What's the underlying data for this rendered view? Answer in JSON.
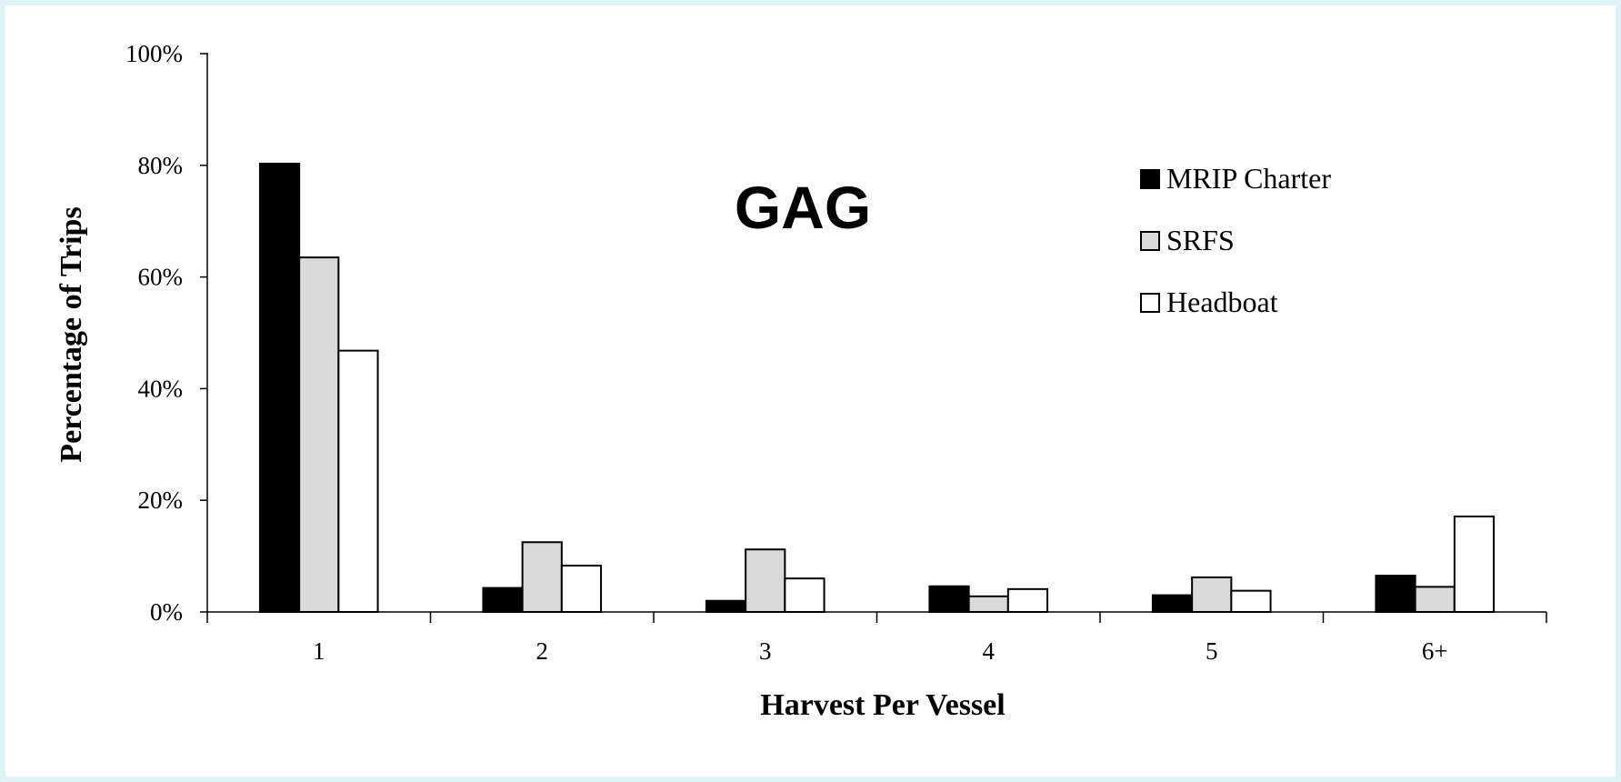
{
  "chart_data": {
    "type": "bar",
    "title": "GAG",
    "xlabel": "Harvest Per Vessel",
    "ylabel": "Percentage of Trips",
    "categories": [
      "1",
      "2",
      "3",
      "4",
      "5",
      "6+"
    ],
    "y_tick_labels": [
      "0%",
      "20%",
      "40%",
      "60%",
      "80%",
      "100%"
    ],
    "ylim": [
      0,
      100
    ],
    "grid": false,
    "legend_position": "top-right",
    "series": [
      {
        "name": "MRIP Charter",
        "color": "#000000",
        "values": [
          80.3,
          4.3,
          2.0,
          4.6,
          3.0,
          6.5
        ]
      },
      {
        "name": "SRFS",
        "color": "#d9d9d9",
        "values": [
          63.5,
          12.5,
          11.2,
          2.8,
          6.2,
          4.5
        ]
      },
      {
        "name": "Headboat",
        "color": "#ffffff",
        "values": [
          46.8,
          8.3,
          6.0,
          4.1,
          3.8,
          17.1
        ]
      }
    ]
  }
}
